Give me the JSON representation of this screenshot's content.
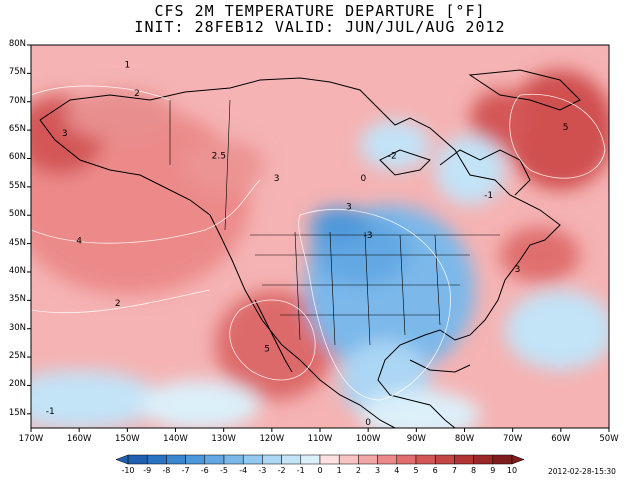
{
  "title": {
    "line1": "CFS 2M TEMPERATURE DEPARTURE [°F]",
    "line2": "INIT: 28FEB12 VALID: JUN/JUL/AUG 2012"
  },
  "axes": {
    "lat_labels": [
      "80N",
      "75N",
      "70N",
      "65N",
      "60N",
      "55N",
      "50N",
      "45N",
      "40N",
      "35N",
      "30N",
      "25N",
      "20N",
      "15N"
    ],
    "lon_labels": [
      "170W",
      "160W",
      "150W",
      "140W",
      "130W",
      "120W",
      "110W",
      "100W",
      "90W",
      "80W",
      "70W",
      "60W",
      "50W"
    ],
    "lat_range": [
      12.5,
      80
    ],
    "lon_range": [
      -170,
      -50
    ]
  },
  "contour_labels": [
    {
      "text": "1",
      "lon": -150,
      "lat": 76
    },
    {
      "text": "2",
      "lon": -148,
      "lat": 71
    },
    {
      "text": "3",
      "lon": -163,
      "lat": 64
    },
    {
      "text": "2.5",
      "lon": -131,
      "lat": 60
    },
    {
      "text": "3",
      "lon": -119,
      "lat": 56
    },
    {
      "text": "0",
      "lon": -101,
      "lat": 56
    },
    {
      "text": "-2",
      "lon": -95,
      "lat": 60
    },
    {
      "text": "3",
      "lon": -104,
      "lat": 51
    },
    {
      "text": "-3",
      "lon": -100,
      "lat": 46
    },
    {
      "text": "4",
      "lon": -160,
      "lat": 45
    },
    {
      "text": "2",
      "lon": -152,
      "lat": 34
    },
    {
      "text": "5",
      "lon": -121,
      "lat": 26
    },
    {
      "text": "0",
      "lon": -100,
      "lat": 13
    },
    {
      "text": "-1",
      "lon": -166,
      "lat": 15
    },
    {
      "text": "-1",
      "lon": -75,
      "lat": 53
    },
    {
      "text": "3",
      "lon": -69,
      "lat": 40
    },
    {
      "text": "5",
      "lon": -59,
      "lat": 65
    }
  ],
  "colorbar": {
    "labels": [
      "-10",
      "-9",
      "-8",
      "-7",
      "-6",
      "-5",
      "-4",
      "-3",
      "-2",
      "-1",
      "0",
      "1",
      "2",
      "3",
      "4",
      "5",
      "6",
      "7",
      "8",
      "9",
      "10"
    ],
    "colors": [
      "#1f5fae",
      "#2a72c2",
      "#3b86d0",
      "#4d98da",
      "#63a8e3",
      "#7bb8ea",
      "#93c8f0",
      "#abd6f4",
      "#c3e3f7",
      "#dcf0fa",
      "#fde0e0",
      "#f8c3c3",
      "#f3a6a6",
      "#ec8a8a",
      "#e06e6e",
      "#d45757",
      "#c44545",
      "#b23434",
      "#9c2727",
      "#7f1d1d"
    ]
  },
  "timestamp": "2012-02-28-15:30"
}
